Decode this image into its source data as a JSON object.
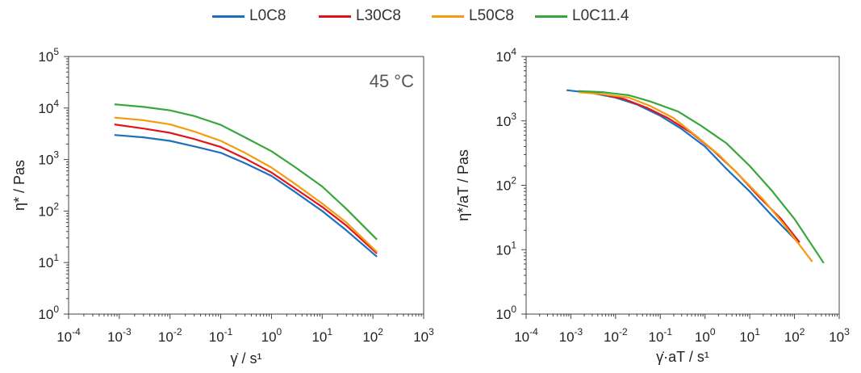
{
  "legend": [
    {
      "name": "L0C8",
      "color": "#1f6fbf"
    },
    {
      "name": "L30C8",
      "color": "#e0151b"
    },
    {
      "name": "L50C8",
      "color": "#f59b12"
    },
    {
      "name": "L0C11.4",
      "color": "#3aa63a"
    }
  ],
  "chart_data": [
    {
      "type": "line",
      "annotation": "45 °C",
      "xlabel": "γ̇  / s¹",
      "ylabel": "η* / Pas",
      "x_scale": "log",
      "y_scale": "log",
      "xlim": [
        0.0001,
        1000
      ],
      "ylim": [
        1,
        100000
      ],
      "x_ticks": [
        {
          "base": "10",
          "exp": "-4"
        },
        {
          "base": "10",
          "exp": "-3"
        },
        {
          "base": "10",
          "exp": "-2"
        },
        {
          "base": "10",
          "exp": "-1"
        },
        {
          "base": "10",
          "exp": "0"
        },
        {
          "base": "10",
          "exp": "1"
        },
        {
          "base": "10",
          "exp": "2"
        },
        {
          "base": "10",
          "exp": "3"
        }
      ],
      "y_ticks": [
        {
          "base": "10",
          "exp": "0"
        },
        {
          "base": "10",
          "exp": "1"
        },
        {
          "base": "10",
          "exp": "2"
        },
        {
          "base": "10",
          "exp": "3"
        },
        {
          "base": "10",
          "exp": "4"
        },
        {
          "base": "10",
          "exp": "5"
        }
      ],
      "grid": false,
      "series": [
        {
          "name": "L0C8",
          "color": "#1f6fbf",
          "x": [
            0.0008,
            0.003,
            0.01,
            0.03,
            0.1,
            0.3,
            1,
            3,
            10,
            30,
            120
          ],
          "y": [
            3000,
            2700,
            2300,
            1800,
            1350,
            850,
            480,
            230,
            100,
            42,
            13
          ]
        },
        {
          "name": "L30C8",
          "color": "#e0151b",
          "x": [
            0.0008,
            0.003,
            0.01,
            0.03,
            0.1,
            0.3,
            1,
            3,
            10,
            30,
            120
          ],
          "y": [
            4800,
            4000,
            3300,
            2500,
            1750,
            1050,
            560,
            270,
            120,
            52,
            15
          ]
        },
        {
          "name": "L50C8",
          "color": "#f59b12",
          "x": [
            0.0008,
            0.003,
            0.01,
            0.03,
            0.1,
            0.3,
            1,
            3,
            10,
            30,
            120
          ],
          "y": [
            6500,
            5800,
            4800,
            3500,
            2300,
            1350,
            700,
            330,
            140,
            60,
            16
          ]
        },
        {
          "name": "L0C11.4",
          "color": "#3aa63a",
          "x": [
            0.0008,
            0.003,
            0.01,
            0.03,
            0.1,
            0.3,
            1,
            3,
            10,
            30,
            120
          ],
          "y": [
            11800,
            10500,
            9000,
            7000,
            4700,
            2700,
            1450,
            700,
            300,
            110,
            28
          ]
        }
      ]
    },
    {
      "type": "line",
      "xlabel": "γ̇·aT  / s¹",
      "ylabel": "η*/aT / Pas",
      "x_scale": "log",
      "y_scale": "log",
      "xlim": [
        0.0001,
        1000
      ],
      "ylim": [
        1,
        10000
      ],
      "x_ticks": [
        {
          "base": "10",
          "exp": "-4"
        },
        {
          "base": "10",
          "exp": "-3"
        },
        {
          "base": "10",
          "exp": "-2"
        },
        {
          "base": "10",
          "exp": "-1"
        },
        {
          "base": "10",
          "exp": "0"
        },
        {
          "base": "10",
          "exp": "1"
        },
        {
          "base": "10",
          "exp": "2"
        },
        {
          "base": "10",
          "exp": "3"
        }
      ],
      "y_ticks": [
        {
          "base": "10",
          "exp": "0"
        },
        {
          "base": "10",
          "exp": "1"
        },
        {
          "base": "10",
          "exp": "2"
        },
        {
          "base": "10",
          "exp": "3"
        },
        {
          "base": "10",
          "exp": "4"
        }
      ],
      "grid": false,
      "series": [
        {
          "name": "L0C8",
          "color": "#1f6fbf",
          "x": [
            0.0008,
            0.003,
            0.01,
            0.03,
            0.1,
            0.3,
            1,
            3,
            10,
            30,
            120
          ],
          "y": [
            3000,
            2700,
            2300,
            1800,
            1200,
            750,
            400,
            180,
            80,
            35,
            13
          ]
        },
        {
          "name": "L30C8",
          "color": "#e0151b",
          "x": [
            0.0015,
            0.005,
            0.015,
            0.05,
            0.15,
            0.5,
            1.5,
            5,
            15,
            50,
            130
          ],
          "y": [
            2900,
            2600,
            2200,
            1600,
            1100,
            650,
            350,
            160,
            70,
            30,
            13
          ]
        },
        {
          "name": "L50C8",
          "color": "#f59b12",
          "x": [
            0.0015,
            0.005,
            0.02,
            0.06,
            0.2,
            0.6,
            2,
            6,
            20,
            60,
            250
          ],
          "y": [
            2800,
            2600,
            2300,
            1700,
            1100,
            600,
            300,
            140,
            60,
            24,
            6.5
          ]
        },
        {
          "name": "L0C11.4",
          "color": "#3aa63a",
          "x": [
            0.0015,
            0.005,
            0.02,
            0.06,
            0.25,
            0.8,
            3,
            10,
            30,
            100,
            450
          ],
          "y": [
            2900,
            2800,
            2500,
            2000,
            1400,
            850,
            450,
            200,
            85,
            30,
            6.2
          ]
        }
      ]
    }
  ]
}
